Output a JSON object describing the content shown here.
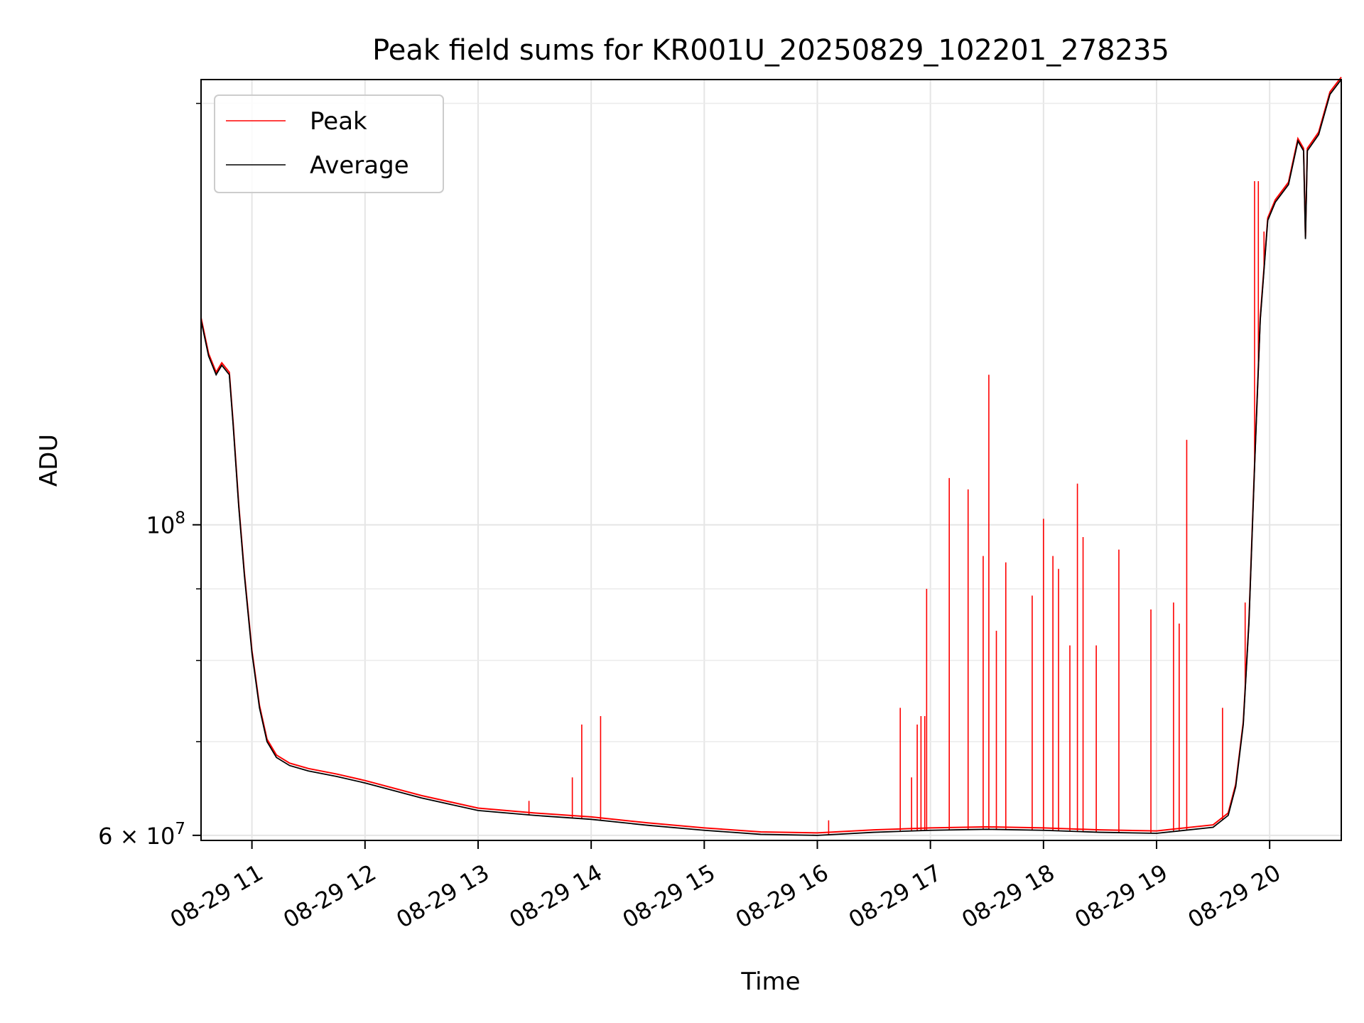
{
  "chart_data": {
    "type": "line",
    "title": "Peak field sums for KR001U_20250829_102201_278235",
    "xlabel": "Time",
    "ylabel": "ADU",
    "yscale": "log",
    "ylim": [
      59500000,
      208000000
    ],
    "xlim": [
      "2025-08-29 10:33",
      "2025-08-29 20:38"
    ],
    "grid": true,
    "legend_position": "upper-left",
    "x_ticks": [
      {
        "value": "2025-08-29 11:00",
        "label": "08-29 11"
      },
      {
        "value": "2025-08-29 12:00",
        "label": "08-29 12"
      },
      {
        "value": "2025-08-29 13:00",
        "label": "08-29 13"
      },
      {
        "value": "2025-08-29 14:00",
        "label": "08-29 14"
      },
      {
        "value": "2025-08-29 15:00",
        "label": "08-29 15"
      },
      {
        "value": "2025-08-29 16:00",
        "label": "08-29 16"
      },
      {
        "value": "2025-08-29 17:00",
        "label": "08-29 17"
      },
      {
        "value": "2025-08-29 18:00",
        "label": "08-29 18"
      },
      {
        "value": "2025-08-29 19:00",
        "label": "08-29 19"
      },
      {
        "value": "2025-08-29 20:00",
        "label": "08-29 20"
      }
    ],
    "y_major_ticks": [
      {
        "value": 60000000,
        "mantissa": "6",
        "times": "×",
        "base": "10",
        "exp": "7"
      },
      {
        "value": 100000000,
        "mantissa": "",
        "times": "",
        "base": "10",
        "exp": "8"
      }
    ],
    "y_minor_ticks": [
      70000000,
      80000000,
      90000000,
      200000000
    ],
    "series": [
      {
        "name": "Average",
        "color": "#000000",
        "points": [
          [
            "2025-08-29 10:33",
            140000000
          ],
          [
            "2025-08-29 10:37",
            132000000
          ],
          [
            "2025-08-29 10:41",
            128000000
          ],
          [
            "2025-08-29 10:44",
            130000000
          ],
          [
            "2025-08-29 10:48",
            128000000
          ],
          [
            "2025-08-29 10:50",
            118000000
          ],
          [
            "2025-08-29 10:53",
            103000000
          ],
          [
            "2025-08-29 10:56",
            92000000
          ],
          [
            "2025-08-29 11:00",
            81000000
          ],
          [
            "2025-08-29 11:04",
            74000000
          ],
          [
            "2025-08-29 11:08",
            70000000
          ],
          [
            "2025-08-29 11:13",
            68200000
          ],
          [
            "2025-08-29 11:20",
            67300000
          ],
          [
            "2025-08-29 11:30",
            66700000
          ],
          [
            "2025-08-29 11:45",
            66100000
          ],
          [
            "2025-08-29 12:00",
            65400000
          ],
          [
            "2025-08-29 12:30",
            63800000
          ],
          [
            "2025-08-29 13:00",
            62500000
          ],
          [
            "2025-08-29 13:30",
            62000000
          ],
          [
            "2025-08-29 14:00",
            61600000
          ],
          [
            "2025-08-29 14:30",
            61000000
          ],
          [
            "2025-08-29 15:00",
            60500000
          ],
          [
            "2025-08-29 15:30",
            60100000
          ],
          [
            "2025-08-29 16:00",
            60000000
          ],
          [
            "2025-08-29 16:30",
            60300000
          ],
          [
            "2025-08-29 17:00",
            60500000
          ],
          [
            "2025-08-29 17:30",
            60600000
          ],
          [
            "2025-08-29 18:00",
            60500000
          ],
          [
            "2025-08-29 18:30",
            60300000
          ],
          [
            "2025-08-29 19:00",
            60200000
          ],
          [
            "2025-08-29 19:30",
            60800000
          ],
          [
            "2025-08-29 19:38",
            62000000
          ],
          [
            "2025-08-29 19:42",
            65000000
          ],
          [
            "2025-08-29 19:46",
            72000000
          ],
          [
            "2025-08-29 19:49",
            85000000
          ],
          [
            "2025-08-29 19:52",
            110000000
          ],
          [
            "2025-08-29 19:55",
            140000000
          ],
          [
            "2025-08-29 19:59",
            165000000
          ],
          [
            "2025-08-29 20:03",
            170000000
          ],
          [
            "2025-08-29 20:10",
            175000000
          ],
          [
            "2025-08-29 20:15",
            188000000
          ],
          [
            "2025-08-29 20:18",
            185000000
          ],
          [
            "2025-08-29 20:19",
            160000000
          ],
          [
            "2025-08-29 20:20",
            185000000
          ],
          [
            "2025-08-29 20:26",
            190000000
          ],
          [
            "2025-08-29 20:32",
            203000000
          ],
          [
            "2025-08-29 20:38",
            208000000
          ]
        ]
      },
      {
        "name": "Peak",
        "color": "#ff0000",
        "spikes": [
          [
            "2025-08-29 13:27",
            63500000
          ],
          [
            "2025-08-29 13:50",
            66000000
          ],
          [
            "2025-08-29 13:55",
            72000000
          ],
          [
            "2025-08-29 14:05",
            73000000
          ],
          [
            "2025-08-29 16:06",
            61500000
          ],
          [
            "2025-08-29 16:44",
            74000000
          ],
          [
            "2025-08-29 16:50",
            66000000
          ],
          [
            "2025-08-29 16:53",
            72000000
          ],
          [
            "2025-08-29 16:55",
            73000000
          ],
          [
            "2025-08-29 16:57",
            73000000
          ],
          [
            "2025-08-29 16:58",
            90000000
          ],
          [
            "2025-08-29 17:10",
            108000000
          ],
          [
            "2025-08-29 17:20",
            106000000
          ],
          [
            "2025-08-29 17:28",
            95000000
          ],
          [
            "2025-08-29 17:31",
            128000000
          ],
          [
            "2025-08-29 17:35",
            84000000
          ],
          [
            "2025-08-29 17:40",
            94000000
          ],
          [
            "2025-08-29 17:54",
            89000000
          ],
          [
            "2025-08-29 18:00",
            101000000
          ],
          [
            "2025-08-29 18:05",
            95000000
          ],
          [
            "2025-08-29 18:08",
            93000000
          ],
          [
            "2025-08-29 18:14",
            82000000
          ],
          [
            "2025-08-29 18:18",
            107000000
          ],
          [
            "2025-08-29 18:21",
            98000000
          ],
          [
            "2025-08-29 18:28",
            82000000
          ],
          [
            "2025-08-29 18:40",
            96000000
          ],
          [
            "2025-08-29 18:57",
            87000000
          ],
          [
            "2025-08-29 19:09",
            88000000
          ],
          [
            "2025-08-29 19:12",
            85000000
          ],
          [
            "2025-08-29 19:16",
            115000000
          ],
          [
            "2025-08-29 19:35",
            74000000
          ],
          [
            "2025-08-29 19:47",
            88000000
          ],
          [
            "2025-08-29 19:52",
            176000000
          ],
          [
            "2025-08-29 19:54",
            176000000
          ],
          [
            "2025-08-29 19:57",
            162000000
          ]
        ]
      }
    ]
  }
}
